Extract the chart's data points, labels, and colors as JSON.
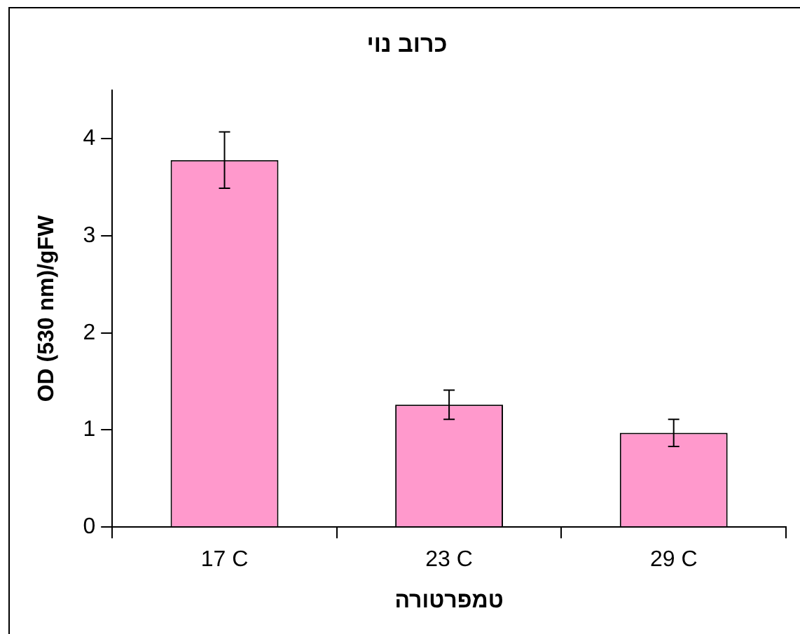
{
  "chart_data": {
    "type": "bar",
    "title": "כרוב נוי",
    "xlabel": "טמפרטורה",
    "ylabel": "OD (530 nm)/gFW",
    "categories": [
      "17 C",
      "23 C",
      "29 C"
    ],
    "series": [
      {
        "color": "#ff99cc",
        "values": [
          3.78,
          1.26,
          0.97
        ],
        "errors": [
          0.29,
          0.15,
          0.14
        ]
      }
    ],
    "ylim": [
      0,
      4.5
    ],
    "yticks": [
      0,
      1,
      2,
      3,
      4
    ],
    "legend": false
  }
}
